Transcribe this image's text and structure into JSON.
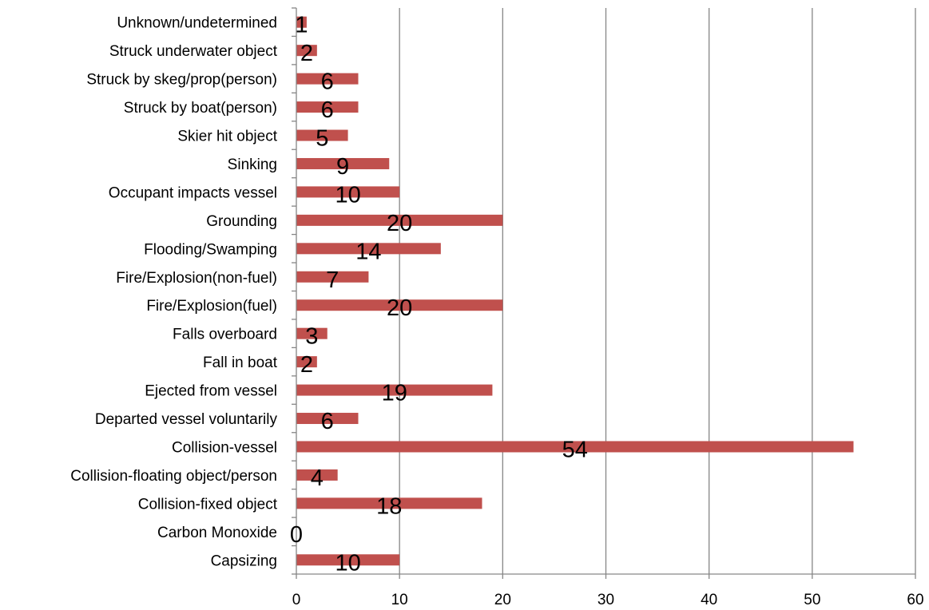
{
  "chart_data": {
    "type": "bar",
    "orientation": "horizontal",
    "categories": [
      "Capsizing",
      "Carbon Monoxide",
      "Collision-fixed object",
      "Collision-floating object/person",
      "Collision-vessel",
      "Departed vessel voluntarily",
      "Ejected from vessel",
      "Fall in boat",
      "Falls overboard",
      "Fire/Explosion(fuel)",
      "Fire/Explosion(non-fuel)",
      "Flooding/Swamping",
      "Grounding",
      "Occupant impacts vessel",
      "Sinking",
      "Skier hit object",
      "Struck by boat(person)",
      "Struck by skeg/prop(person)",
      "Struck underwater object",
      "Unknown/undetermined"
    ],
    "values": [
      10,
      0,
      18,
      4,
      54,
      6,
      19,
      2,
      3,
      20,
      7,
      14,
      20,
      10,
      9,
      5,
      6,
      6,
      2,
      1
    ],
    "data_labels": [
      "10",
      "0",
      "18",
      "4",
      "54",
      "6",
      "19",
      "2",
      "3",
      "20",
      "7",
      "14",
      "20",
      "10",
      "9",
      "5",
      "6",
      "6",
      "2",
      "1"
    ],
    "xlim": [
      0,
      60
    ],
    "x_ticks": [
      0,
      10,
      20,
      30,
      40,
      50,
      60
    ],
    "x_tick_labels": [
      "0",
      "10",
      "20",
      "30",
      "40",
      "50",
      "60"
    ],
    "title": "",
    "xlabel": "",
    "ylabel": "",
    "grid": "vertical",
    "legend": "none",
    "colors": {
      "bar": "#c0504d",
      "grid": "#868686",
      "axis": "#868686",
      "text": "#000000"
    }
  }
}
